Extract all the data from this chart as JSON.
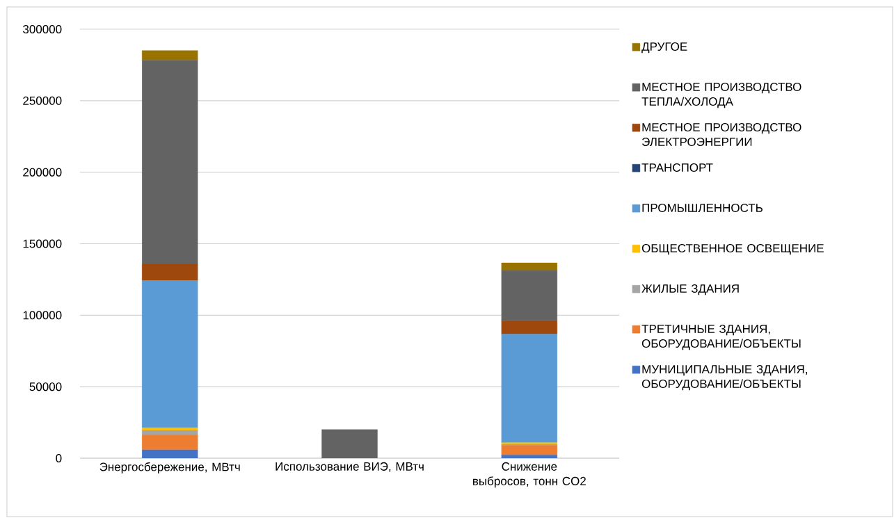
{
  "chart_data": {
    "type": "bar",
    "stacked": true,
    "categories": [
      "Энергосбережение, МВтч",
      "Использование ВИЭ, МВтч",
      "Снижение выбросов, тонн CO2"
    ],
    "series": [
      {
        "name": "МУНИЦИПАЛЬНЫЕ ЗДАНИЯ, ОБОРУДОВАНИЕ/ОБЪЕКТЫ",
        "color": "#4472c4",
        "values": [
          6000,
          0,
          2200
        ]
      },
      {
        "name": "ТРЕТИЧНЫЕ ЗДАНИЯ, ОБОРУДОВАНИЕ/ОБЪЕКТЫ",
        "color": "#ed7d31",
        "values": [
          10400,
          0,
          6800
        ]
      },
      {
        "name": "ЖИЛЫЕ ЗДАНИЯ",
        "color": "#a5a5a5",
        "values": [
          3000,
          0,
          700
        ]
      },
      {
        "name": "ОБЩЕСТВЕННОЕ ОСВЕЩЕНИЕ",
        "color": "#ffc000",
        "values": [
          1900,
          0,
          1100
        ]
      },
      {
        "name": "ПРОМЫШЛЕННОСТЬ",
        "color": "#5b9bd5",
        "values": [
          102900,
          0,
          76000
        ]
      },
      {
        "name": "ТРАНСПОРТ",
        "color": "#264478",
        "values": [
          0,
          0,
          0
        ]
      },
      {
        "name": "МЕСТНОЕ ПРОИЗВОДСТВО ЭЛЕКТРОЭНЕРГИИ",
        "color": "#9e480e",
        "values": [
          11400,
          0,
          9400
        ]
      },
      {
        "name": "МЕСТНОЕ ПРОИЗВОДСТВО ТЕПЛА/ХОЛОДА",
        "color": "#636363",
        "values": [
          142800,
          20000,
          35200
        ]
      },
      {
        "name": "ДРУГОЕ",
        "color": "#997300",
        "values": [
          6700,
          0,
          5200
        ]
      }
    ],
    "ylim": [
      0,
      300000
    ],
    "yticks": [
      0,
      50000,
      100000,
      150000,
      200000,
      250000,
      300000
    ],
    "grid": "y",
    "legend": "right"
  }
}
